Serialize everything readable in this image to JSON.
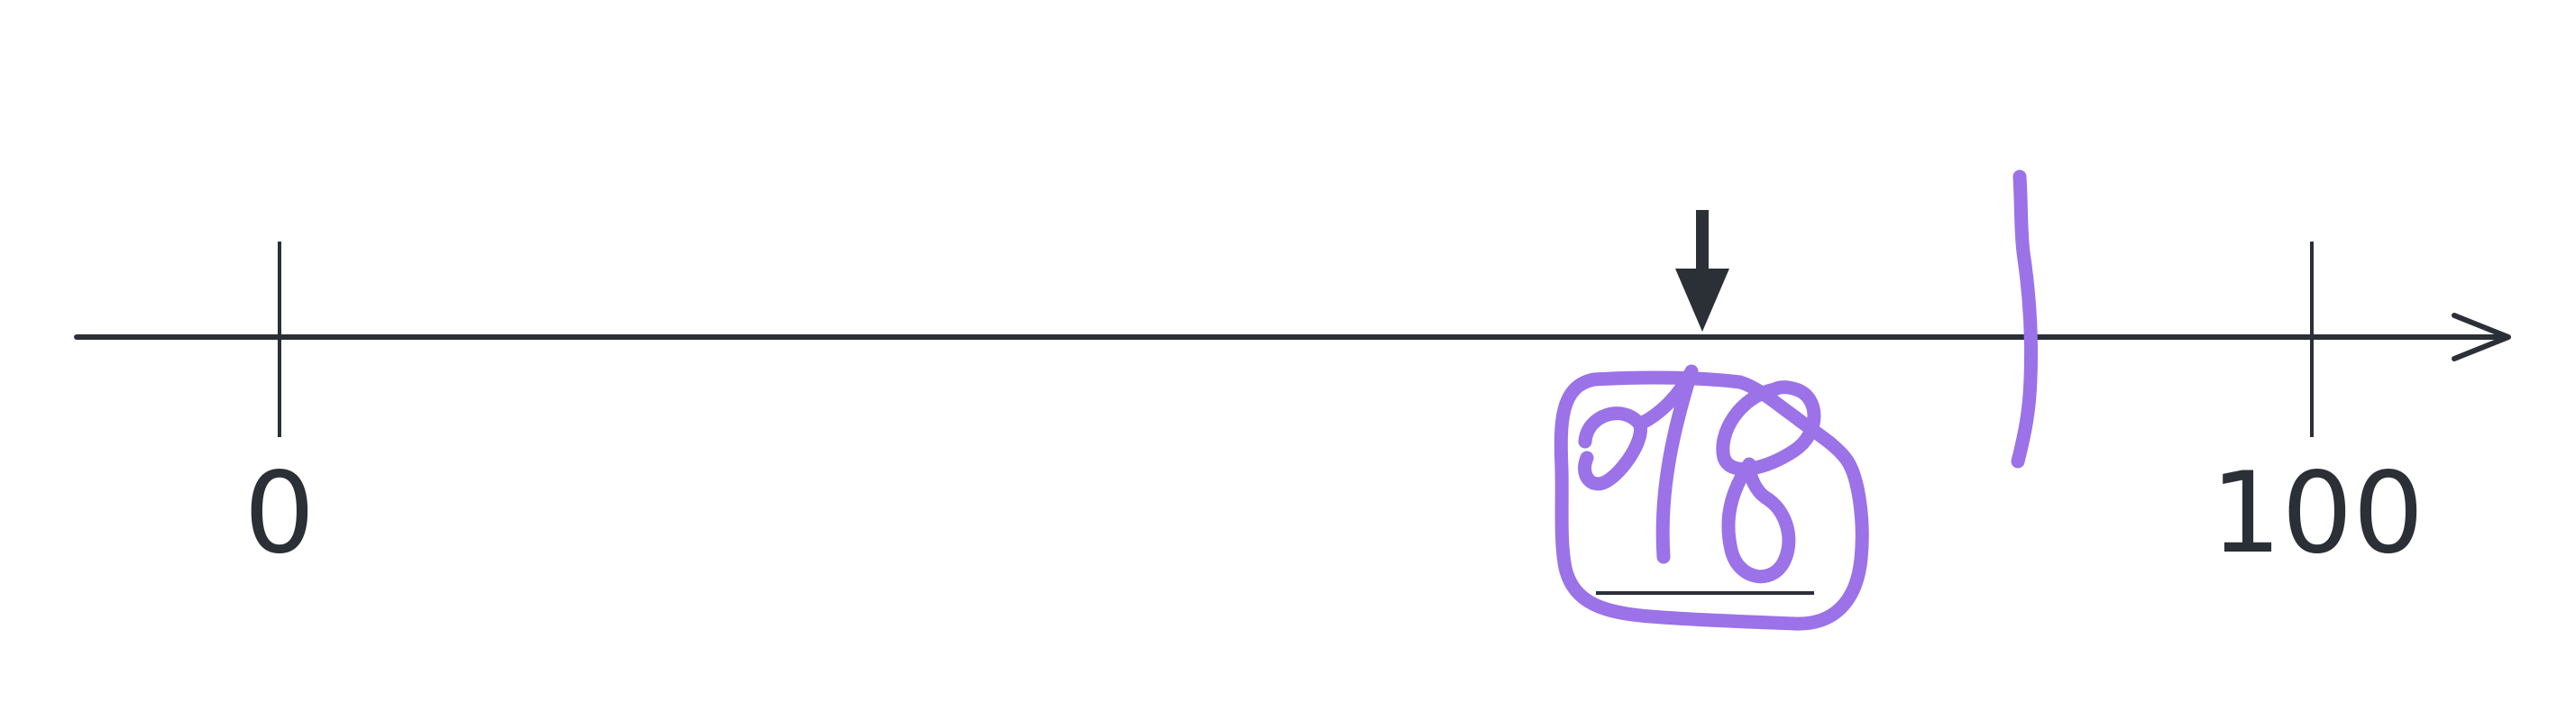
{
  "number_line": {
    "start_label": "0",
    "end_label": "100",
    "start_value": 0,
    "end_value": 100,
    "arrow_value": 70
  },
  "annotations": {
    "handwritten_answer": "78",
    "ink_color": "#9b72e8"
  },
  "colors": {
    "line": "#2b2f36",
    "ink": "#9b72e8",
    "background": "#ffffff"
  }
}
